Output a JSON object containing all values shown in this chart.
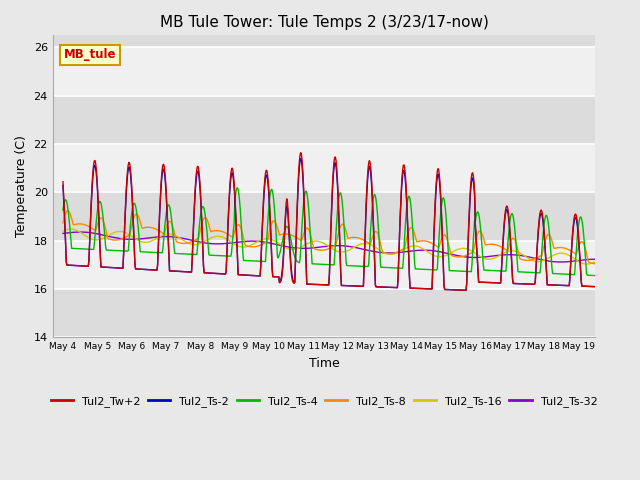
{
  "title": "MB Tule Tower: Tule Temps 2 (3/23/17-now)",
  "xlabel": "Time",
  "ylabel": "Temperature (C)",
  "ylim": [
    14,
    26.5
  ],
  "xlim": [
    -0.3,
    15.5
  ],
  "background_color": "#e8e8e8",
  "plot_bg_color": "#f0f0f0",
  "grid_color": "#ffffff",
  "series_colors": {
    "Tul2_Tw+2": "#cc0000",
    "Tul2_Ts-2": "#0000cc",
    "Tul2_Ts-4": "#00bb00",
    "Tul2_Ts-8": "#ff8800",
    "Tul2_Ts-16": "#cccc00",
    "Tul2_Ts-32": "#8800cc"
  },
  "xtick_labels": [
    "May 4",
    "May 5",
    "May 6",
    "May 7",
    "May 8",
    "May 9",
    "May 10",
    "May 11",
    "May 12",
    "May 13",
    "May 14",
    "May 15",
    "May 16",
    "May 17",
    "May 18",
    "May 19"
  ],
  "xtick_positions": [
    0,
    1,
    2,
    3,
    4,
    5,
    6,
    7,
    8,
    9,
    10,
    11,
    12,
    13,
    14,
    15
  ],
  "ytick_labels": [
    "14",
    "16",
    "18",
    "20",
    "22",
    "24",
    "26"
  ],
  "ytick_positions": [
    14,
    16,
    18,
    20,
    22,
    24,
    26
  ],
  "legend_label": "MB_tule",
  "legend_bg": "#ffffcc",
  "legend_border": "#cc9900",
  "band_color_light": "#f0f0f0",
  "band_color_dark": "#dcdcdc"
}
